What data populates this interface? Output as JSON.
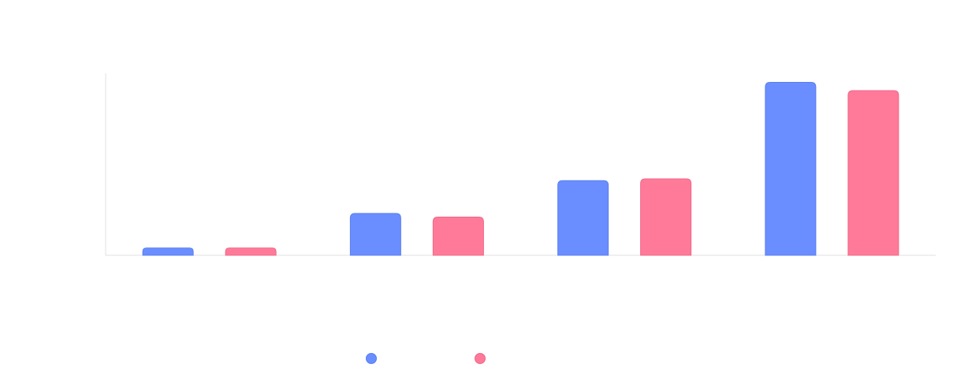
{
  "chart_data": {
    "type": "bar",
    "title": "",
    "xlabel": "",
    "ylabel": "",
    "categories": [
      "",
      "",
      "",
      ""
    ],
    "ylim": [
      0,
      100
    ],
    "grid": false,
    "legend_placement": "bottom-center",
    "series": [
      {
        "name": "",
        "color": "#6a8eff",
        "stroke": "#5a7ef0",
        "values": [
          4,
          23,
          41,
          95
        ]
      },
      {
        "name": "",
        "color": "#ff7a98",
        "stroke": "#f06688",
        "values": [
          4,
          21,
          42,
          90.5
        ]
      }
    ]
  }
}
